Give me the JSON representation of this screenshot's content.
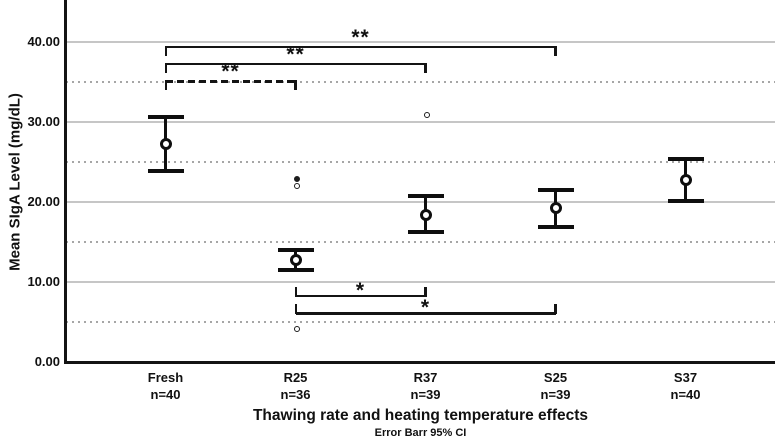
{
  "chart_data": {
    "type": "errorbar",
    "title": "",
    "xlabel": "Thawing rate and heating temperature effects",
    "subtitle": "Error Barr 95% CI",
    "ylabel": "Mean SIgA Level (mg/dL)",
    "ylim": [
      0,
      45
    ],
    "grid": "horizontal",
    "legend_position": "none",
    "ytick_values": [
      0,
      10,
      20,
      30,
      40
    ],
    "ytick_labels": [
      "0.00",
      "10.00",
      "20.00",
      "30.00",
      "40.00"
    ],
    "minor_dotted_gridlines": [
      5,
      15,
      25,
      35
    ],
    "categories": [
      {
        "label": "Fresh",
        "n_label": "n=40",
        "mean": 27.3,
        "ci_low": 23.9,
        "ci_high": 30.6,
        "outliers": []
      },
      {
        "label": "R25",
        "n_label": "n=36",
        "mean": 12.8,
        "ci_low": 11.5,
        "ci_high": 14.0,
        "outliers": [
          22.9,
          22.0,
          4.1
        ]
      },
      {
        "label": "R37",
        "n_label": "n=39",
        "mean": 18.4,
        "ci_low": 16.2,
        "ci_high": 20.8,
        "outliers": [
          30.9
        ]
      },
      {
        "label": "S25",
        "n_label": "n=39",
        "mean": 19.3,
        "ci_low": 16.9,
        "ci_high": 21.5,
        "outliers": []
      },
      {
        "label": "S37",
        "n_label": "n=40",
        "mean": 22.8,
        "ci_low": 20.1,
        "ci_high": 25.4,
        "outliers": []
      }
    ],
    "comparisons": [
      {
        "a": "Fresh",
        "b": "S25",
        "label": "**",
        "side": "top",
        "y_value": 39.4,
        "line_style": "solid"
      },
      {
        "a": "Fresh",
        "b": "R37",
        "label": "**",
        "side": "top",
        "y_value": 37.3,
        "line_style": "solid"
      },
      {
        "a": "Fresh",
        "b": "R25",
        "label": "**",
        "side": "top",
        "y_value": 35.1,
        "line_style": "dashed"
      },
      {
        "a": "R25",
        "b": "R37",
        "label": "*",
        "side": "bottom",
        "y_value": 8.3,
        "line_style": "solid"
      },
      {
        "a": "R25",
        "b": "S25",
        "label": "*",
        "side": "bottom",
        "y_value": 6.1,
        "line_style": "solid"
      }
    ],
    "colors": {
      "ink": "#111111",
      "solid_grid": "#c6c6c6",
      "dotted_grid": "#a6a6a6",
      "background": "#ffffff"
    }
  }
}
